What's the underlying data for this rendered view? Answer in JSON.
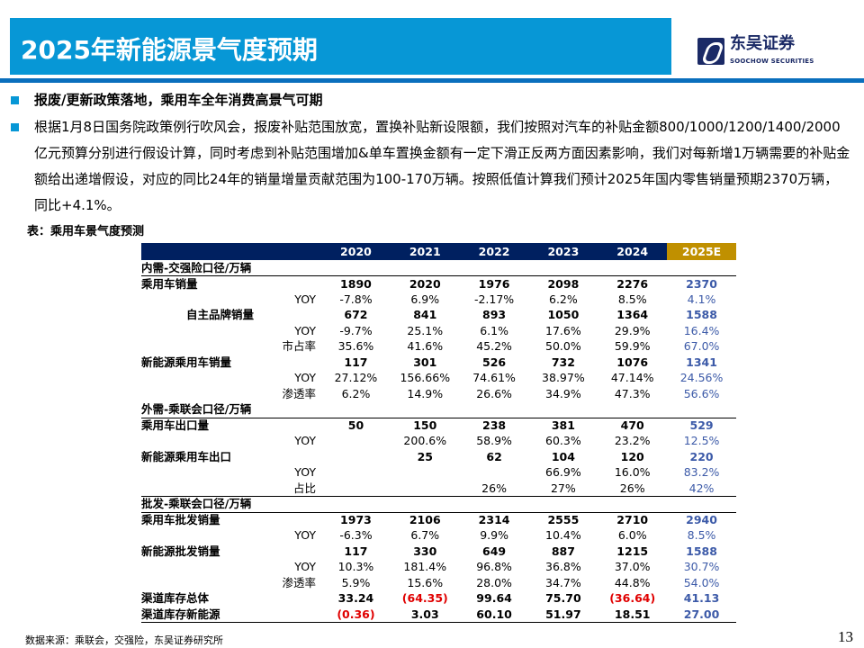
{
  "header": {
    "title": "2025年新能源景气度预期",
    "logo_cn": "东吴证券",
    "logo_en": "SOOCHOW SECURITIES"
  },
  "bullets": [
    "报废/更新政策落地，乘用车全年消费高景气可期",
    "根据1月8日国务院政策例行吹风会，报废补贴范围放宽，置换补贴新设限额，我们按照对汽车的补贴金额800/1000/1200/1400/2000亿元预算分别进行假设计算，同时考虑到补贴范围增加&单车置换金额有一定下滑正反两方面因素影响，我们对每新增1万辆需要的补贴金额给出递增假设，对应的同比24年的销量增量贡献范围为100-170万辆。按照低值计算我们预计2025年国内零售销量预期2370万辆，同比+4.1%。"
  ],
  "table": {
    "caption": "表：乘用车景气度预测",
    "columns": [
      "",
      "",
      "2020",
      "2021",
      "2022",
      "2023",
      "2024",
      "2025E"
    ],
    "colors": {
      "header": "#002060",
      "estimate_header": "#c09000",
      "estimate_text": "#3c5aa8",
      "negative": "#e00000"
    },
    "rows": [
      {
        "label": "内需-交强险口径/万辆",
        "type": "section"
      },
      {
        "label": "乘用车销量",
        "sub": "",
        "values": [
          "1890",
          "2020",
          "1976",
          "2098",
          "2276",
          "2370"
        ],
        "bold": true
      },
      {
        "label": "",
        "sub": "YOY",
        "values": [
          "-7.8%",
          "6.9%",
          "-2.17%",
          "6.2%",
          "8.5%",
          "4.1%"
        ]
      },
      {
        "label": "自主品牌销量",
        "sub": "",
        "values": [
          "672",
          "841",
          "893",
          "1050",
          "1364",
          "1588"
        ],
        "bold": true,
        "indent": true
      },
      {
        "label": "",
        "sub": "YOY",
        "values": [
          "-9.7%",
          "25.1%",
          "6.1%",
          "17.6%",
          "29.9%",
          "16.4%"
        ]
      },
      {
        "label": "",
        "sub": "市占率",
        "values": [
          "35.6%",
          "41.6%",
          "45.2%",
          "50.0%",
          "59.9%",
          "67.0%"
        ]
      },
      {
        "label": "新能源乘用车销量",
        "sub": "",
        "values": [
          "117",
          "301",
          "526",
          "732",
          "1076",
          "1341"
        ],
        "bold": true
      },
      {
        "label": "",
        "sub": "YOY",
        "values": [
          "27.12%",
          "156.66%",
          "74.61%",
          "38.97%",
          "47.14%",
          "24.56%"
        ]
      },
      {
        "label": "",
        "sub": "渗透率",
        "values": [
          "6.2%",
          "14.9%",
          "26.6%",
          "34.9%",
          "47.3%",
          "56.6%"
        ]
      },
      {
        "label": "外需-乘联会口径/万辆",
        "type": "section"
      },
      {
        "label": "乘用车出口量",
        "sub": "",
        "values": [
          "50",
          "150",
          "238",
          "381",
          "470",
          "529"
        ],
        "bold": true
      },
      {
        "label": "",
        "sub": "YOY",
        "values": [
          "",
          "200.6%",
          "58.9%",
          "60.3%",
          "23.2%",
          "12.5%"
        ]
      },
      {
        "label": "新能源乘用车出口",
        "sub": "",
        "values": [
          "",
          "25",
          "62",
          "104",
          "120",
          "220"
        ],
        "bold": true
      },
      {
        "label": "",
        "sub": "YOY",
        "values": [
          "",
          "",
          "",
          "66.9%",
          "16.0%",
          "83.2%"
        ]
      },
      {
        "label": "",
        "sub": "占比",
        "values": [
          "",
          "",
          "26%",
          "27%",
          "26%",
          "42%"
        ],
        "last": true
      },
      {
        "label": "批发-乘联会口径/万辆",
        "type": "section"
      },
      {
        "label": "乘用车批发销量",
        "sub": "",
        "values": [
          "1973",
          "2106",
          "2314",
          "2555",
          "2710",
          "2940"
        ],
        "bold": true
      },
      {
        "label": "",
        "sub": "YOY",
        "values": [
          "-6.3%",
          "6.7%",
          "9.9%",
          "10.4%",
          "6.0%",
          "8.5%"
        ]
      },
      {
        "label": "新能源批发销量",
        "sub": "",
        "values": [
          "117",
          "330",
          "649",
          "887",
          "1215",
          "1588"
        ],
        "bold": true
      },
      {
        "label": "",
        "sub": "YOY",
        "values": [
          "10.3%",
          "181.4%",
          "96.8%",
          "36.8%",
          "37.0%",
          "30.7%"
        ]
      },
      {
        "label": "",
        "sub": "渗透率",
        "values": [
          "5.9%",
          "15.6%",
          "28.0%",
          "34.7%",
          "44.8%",
          "54.0%"
        ]
      },
      {
        "label": "渠道库存总体",
        "sub": "",
        "values": [
          "33.24",
          "(64.35)",
          "99.64",
          "75.70",
          "(36.64)",
          "41.13"
        ],
        "bold": true
      },
      {
        "label": "渠道库存新能源",
        "sub": "",
        "values": [
          "(0.36)",
          "3.03",
          "60.10",
          "51.97",
          "18.51",
          "27.00"
        ],
        "bold": true,
        "last": true
      }
    ]
  },
  "footer": {
    "source": "数据来源：乘联会，交强险，东吴证券研究所",
    "page": "13"
  }
}
